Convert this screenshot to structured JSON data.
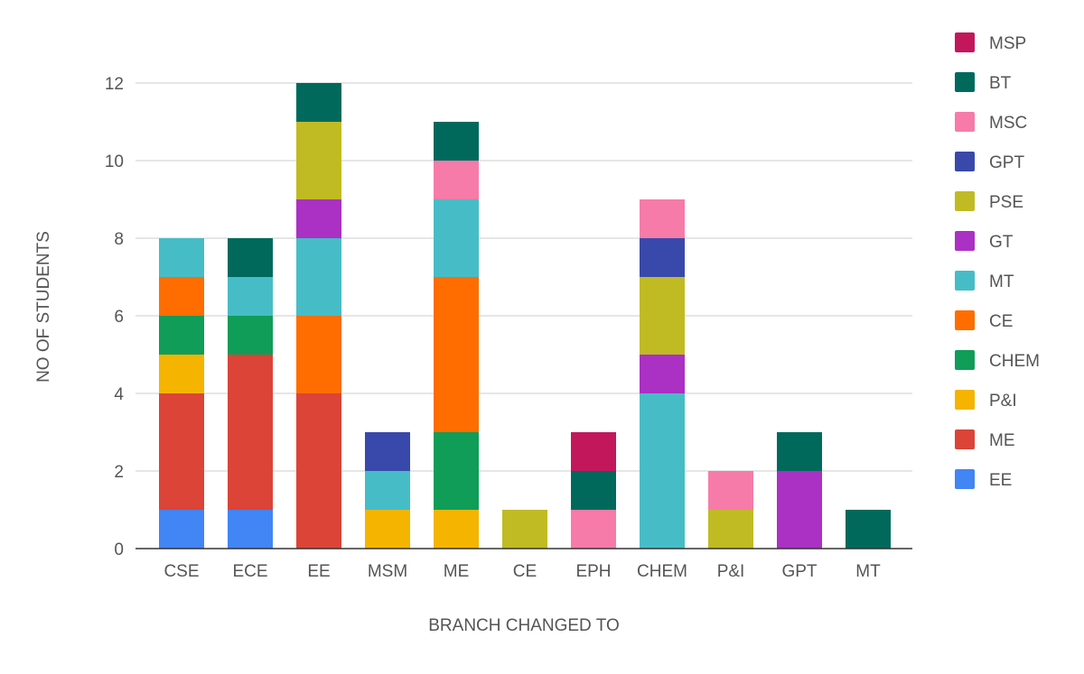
{
  "chart_data": {
    "type": "bar",
    "stacked": true,
    "title": "",
    "xlabel": "BRANCH CHANGED TO",
    "ylabel": "NO OF STUDENTS",
    "ylim": [
      0,
      12
    ],
    "yticks": [
      0,
      2,
      4,
      6,
      8,
      10,
      12
    ],
    "grid": true,
    "legend_position": "right",
    "categories": [
      "CSE",
      "ECE",
      "EE",
      "MSM",
      "ME",
      "CE",
      "EPH",
      "CHEM",
      "P&I",
      "GPT",
      "MT"
    ],
    "series": [
      {
        "name": "EE",
        "color": "#4285F4",
        "values": [
          1,
          1,
          0,
          0,
          0,
          0,
          0,
          0,
          0,
          0,
          0
        ]
      },
      {
        "name": "ME",
        "color": "#DB4437",
        "values": [
          3,
          4,
          4,
          0,
          0,
          0,
          0,
          0,
          0,
          0,
          0
        ]
      },
      {
        "name": "P&I",
        "color": "#F4B400",
        "values": [
          1,
          0,
          0,
          1,
          1,
          0,
          0,
          0,
          0,
          0,
          0
        ]
      },
      {
        "name": "CHEM",
        "color": "#0F9D58",
        "values": [
          1,
          1,
          0,
          0,
          2,
          0,
          0,
          0,
          0,
          0,
          0
        ]
      },
      {
        "name": "CE",
        "color": "#FF6D00",
        "values": [
          1,
          0,
          2,
          0,
          4,
          0,
          0,
          0,
          0,
          0,
          0
        ]
      },
      {
        "name": "MT",
        "color": "#46BDC6",
        "values": [
          1,
          1,
          2,
          1,
          2,
          0,
          0,
          4,
          0,
          0,
          0
        ]
      },
      {
        "name": "GT",
        "color": "#AB30C4",
        "values": [
          0,
          0,
          1,
          0,
          0,
          0,
          0,
          1,
          0,
          2,
          0
        ]
      },
      {
        "name": "PSE",
        "color": "#C0BB23",
        "values": [
          0,
          0,
          2,
          0,
          0,
          1,
          0,
          2,
          1,
          0,
          0
        ]
      },
      {
        "name": "GPT",
        "color": "#3949AB",
        "values": [
          0,
          0,
          0,
          1,
          0,
          0,
          0,
          1,
          0,
          0,
          0
        ]
      },
      {
        "name": "MSC",
        "color": "#F77BA8",
        "values": [
          0,
          0,
          0,
          0,
          1,
          0,
          1,
          1,
          1,
          0,
          0
        ]
      },
      {
        "name": "BT",
        "color": "#00695C",
        "values": [
          0,
          1,
          1,
          0,
          1,
          0,
          1,
          0,
          0,
          1,
          1
        ]
      },
      {
        "name": "MSP",
        "color": "#C2185B",
        "values": [
          0,
          0,
          0,
          0,
          0,
          0,
          1,
          0,
          0,
          0,
          0
        ]
      }
    ]
  }
}
